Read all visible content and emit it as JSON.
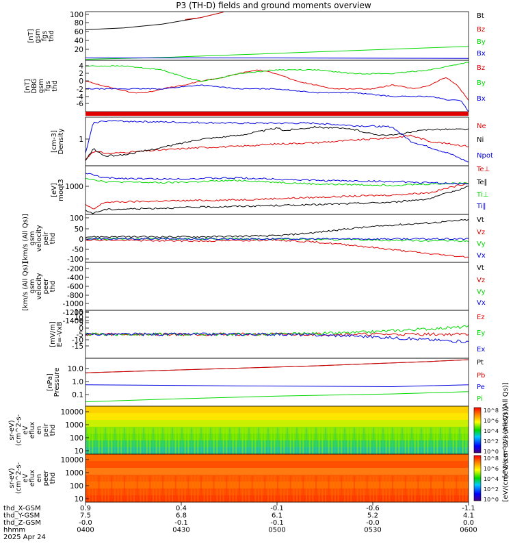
{
  "title": "P3 (TH-D) fields and ground moments overview",
  "colors": {
    "black": "#000000",
    "red": "#e00000",
    "green": "#00d800",
    "blue": "#0000e0",
    "orange": "#ff5a00"
  },
  "chart_data": [
    {
      "type": "line",
      "ylabel": [
        "thd",
        "fgs",
        "gsm",
        "[nT]"
      ],
      "yticks": [
        "100",
        "80",
        "60",
        "40",
        "20"
      ],
      "ylim": [
        0,
        105
      ],
      "series": [
        {
          "name": "Bt",
          "color": "#000000",
          "x": [
            0,
            0.1,
            0.2,
            0.3,
            0.36
          ],
          "y": [
            66,
            70,
            78,
            92,
            104
          ]
        },
        {
          "name": "Bz",
          "color": "#e00000",
          "x": [
            0.26,
            0.3,
            0.36
          ],
          "y": [
            88,
            92,
            104
          ]
        },
        {
          "name": "By",
          "color": "#00d800",
          "x": [
            0,
            0.2,
            0.4,
            0.6,
            0.8,
            1.0
          ],
          "y": [
            2,
            6,
            12,
            18,
            24,
            30
          ]
        },
        {
          "name": "Bx",
          "color": "#0000e0",
          "x": [
            0,
            0.5,
            1.0
          ],
          "y": [
            5,
            5,
            4
          ]
        }
      ]
    },
    {
      "type": "line",
      "ylabel": [
        "thd",
        "fgs",
        "gsm",
        "DBG",
        "[nT]"
      ],
      "yticks": [
        "4",
        "2",
        "0",
        "-2",
        "-4",
        "-6"
      ],
      "ylim": [
        -8,
        5.5
      ],
      "series": [
        {
          "name": "Bz",
          "color": "#e00000",
          "x": [
            0,
            0.04,
            0.08,
            0.12,
            0.16,
            0.2,
            0.26,
            0.3,
            0.36,
            0.4,
            0.45,
            0.5,
            0.55,
            0.6,
            0.65,
            0.7,
            0.75,
            0.8,
            0.86,
            0.9,
            0.94,
            0.97,
            1.0
          ],
          "y": [
            0,
            -1,
            -2,
            -3,
            -3,
            -2,
            -1,
            0,
            1,
            2,
            3,
            2,
            0,
            -1,
            -2,
            -2,
            -2,
            -1,
            -2,
            -1,
            1,
            -1,
            -5
          ]
        },
        {
          "name": "By",
          "color": "#00d800",
          "x": [
            0,
            0.1,
            0.2,
            0.26,
            0.3,
            0.36,
            0.4,
            0.5,
            0.6,
            0.7,
            0.8,
            0.9,
            0.95,
            1.0
          ],
          "y": [
            4,
            4,
            3,
            1,
            0,
            1,
            2,
            3,
            3,
            2,
            2,
            3,
            4,
            5
          ]
        },
        {
          "name": "Bx",
          "color": "#0000e0",
          "x": [
            0,
            0.1,
            0.2,
            0.3,
            0.4,
            0.5,
            0.6,
            0.7,
            0.8,
            0.9,
            0.95,
            0.98,
            1.0
          ],
          "y": [
            -2,
            -2,
            -2,
            -1,
            -2,
            -2,
            -3,
            -3,
            -4,
            -4,
            -5,
            -5,
            -8
          ]
        }
      ]
    },
    {
      "type": "line",
      "ylabel": [
        "Density",
        "[cm-3]"
      ],
      "yticks": [
        "1"
      ],
      "ylim": [
        0,
        4
      ],
      "series": [
        {
          "name": "Ne",
          "color": "#e00000",
          "x": [
            0,
            0.02,
            0.06,
            0.1,
            0.2,
            0.3,
            0.4,
            0.5,
            0.6,
            0.7,
            0.8,
            0.85,
            0.9,
            1.0
          ],
          "y": [
            0.5,
            1.2,
            1.0,
            1.1,
            1.3,
            1.5,
            1.6,
            1.8,
            1.9,
            2.1,
            2.3,
            2.5,
            2.0,
            1.6
          ]
        },
        {
          "name": "Ni",
          "color": "#000000",
          "x": [
            0,
            0.02,
            0.05,
            0.1,
            0.2,
            0.3,
            0.4,
            0.5,
            0.52,
            0.6,
            0.7,
            0.75,
            0.8,
            0.9,
            1.0
          ],
          "y": [
            0.4,
            1.4,
            0.8,
            0.9,
            1.5,
            2.2,
            2.5,
            3.1,
            2.9,
            3.2,
            3.0,
            2.6,
            2.5,
            3.0,
            3.0
          ]
        },
        {
          "name": "Npot",
          "color": "#0000e0",
          "x": [
            0,
            0.02,
            0.05,
            0.2,
            0.4,
            0.6,
            0.7,
            0.8,
            0.85,
            0.9,
            0.95,
            1.0
          ],
          "y": [
            1.0,
            3.5,
            3.7,
            3.6,
            3.5,
            3.5,
            3.3,
            3.2,
            2.0,
            1.5,
            1.0,
            0.3
          ]
        }
      ]
    },
    {
      "type": "line",
      "ylabel": [
        "moqt3",
        "[eV]"
      ],
      "yticks": [
        "1000"
      ],
      "ylim": [
        0,
        4
      ],
      "series": [
        {
          "name": "Te⊥",
          "color": "#e00000",
          "x": [
            0,
            0.02,
            0.05,
            0.2,
            0.4,
            0.6,
            0.8,
            0.9,
            1.0
          ],
          "y": [
            0.8,
            0.4,
            1.0,
            1.1,
            1.2,
            1.4,
            1.6,
            1.8,
            2.6
          ]
        },
        {
          "name": "Te∥",
          "color": "#000000",
          "x": [
            0,
            0.02,
            0.05,
            0.3,
            0.6,
            0.8,
            0.9,
            1.0
          ],
          "y": [
            0.3,
            0.1,
            0.4,
            0.6,
            0.8,
            1.0,
            1.3,
            2.3
          ]
        },
        {
          "name": "Ti⊥",
          "color": "#00d800",
          "x": [
            0,
            0.05,
            0.2,
            0.4,
            0.6,
            0.8,
            1.0
          ],
          "y": [
            3.0,
            2.7,
            2.6,
            2.8,
            2.5,
            2.4,
            2.6
          ]
        },
        {
          "name": "Ti∥",
          "color": "#0000e0",
          "x": [
            0,
            0.05,
            0.2,
            0.4,
            0.6,
            0.8,
            1.0
          ],
          "y": [
            3.4,
            3.0,
            2.9,
            3.0,
            2.8,
            2.7,
            2.5
          ]
        }
      ]
    },
    {
      "type": "line",
      "ylabel": [
        "thd",
        "peir",
        "velocity",
        "gsm",
        "[km/s (All Qs)]"
      ],
      "yticks": [
        "100",
        "50",
        "0",
        "-50",
        "-100"
      ],
      "ylim": [
        -110,
        115
      ],
      "series": [
        {
          "name": "Vt",
          "color": "#000000",
          "x": [
            0,
            0.3,
            0.5,
            0.6,
            0.7,
            0.8,
            0.9,
            1.0
          ],
          "y": [
            10,
            10,
            15,
            30,
            50,
            65,
            75,
            90
          ]
        },
        {
          "name": "Vz",
          "color": "#e00000",
          "x": [
            0,
            0.3,
            0.5,
            0.6,
            0.7,
            0.8,
            0.9,
            1.0
          ],
          "y": [
            -5,
            -10,
            -5,
            -15,
            -30,
            -50,
            -70,
            -85
          ]
        },
        {
          "name": "Vy",
          "color": "#00d800",
          "x": [
            0,
            0.5,
            1.0
          ],
          "y": [
            0,
            0,
            -10
          ]
        },
        {
          "name": "Vx",
          "color": "#0000e0",
          "x": [
            0,
            0.5,
            1.0
          ],
          "y": [
            0,
            0,
            0
          ]
        }
      ]
    },
    {
      "type": "line",
      "ylabel": [
        "thd",
        "peer",
        "velocity",
        "gsm",
        "[km/s (All Qs)]"
      ],
      "yticks": [
        "-200",
        "-400",
        "-600",
        "-800",
        "-1000",
        "-1200",
        "-1400"
      ],
      "ylim": [
        -1500,
        0
      ],
      "series": [
        {
          "name": "Vt",
          "color": "#000000"
        },
        {
          "name": "Vz",
          "color": "#e00000"
        },
        {
          "name": "Vy",
          "color": "#00d800"
        },
        {
          "name": "Vx",
          "color": "#0000e0"
        }
      ]
    },
    {
      "type": "line",
      "ylabel": [
        "E=-VxB",
        "[mV/m]"
      ],
      "yticks": [
        "15",
        "10",
        "5",
        "0",
        "-5",
        "-10",
        "-15"
      ],
      "ylim": [
        -16,
        16
      ],
      "series": [
        {
          "name": "Ez",
          "color": "#e00000",
          "x": [
            0,
            0.5,
            1.0
          ],
          "y": [
            0,
            0,
            0
          ]
        },
        {
          "name": "Ey",
          "color": "#00d800",
          "x": [
            0,
            0.5,
            0.7,
            0.85,
            1.0
          ],
          "y": [
            0,
            0,
            1,
            3,
            5
          ]
        },
        {
          "name": "Ex",
          "color": "#0000e0",
          "x": [
            0,
            0.5,
            0.7,
            0.85,
            1.0
          ],
          "y": [
            0,
            0,
            -1,
            -3,
            -5
          ]
        }
      ]
    },
    {
      "type": "line",
      "ylabel": [
        "Pressure",
        "[nPa]"
      ],
      "yticks": [
        "10.0",
        "1.0",
        "0.1"
      ],
      "ylim": [
        0.01,
        20
      ],
      "yscale": "log",
      "series": [
        {
          "name": "Pt",
          "color": "#000000",
          "x": [
            0,
            0.3,
            0.6,
            0.9,
            1.0
          ],
          "y": [
            2,
            3.5,
            6,
            12,
            16
          ]
        },
        {
          "name": "Pb",
          "color": "#e00000",
          "x": [
            0,
            0.3,
            0.6,
            0.9,
            1.0
          ],
          "y": [
            2,
            3.5,
            6,
            12,
            16
          ]
        },
        {
          "name": "Pe",
          "color": "#0000e0",
          "x": [
            0,
            0.4,
            0.8,
            1.0
          ],
          "y": [
            0.3,
            0.25,
            0.22,
            0.3
          ]
        },
        {
          "name": "Pi",
          "color": "#00d800",
          "x": [
            0,
            0.2,
            0.5,
            0.8,
            1.0
          ],
          "y": [
            0.02,
            0.03,
            0.05,
            0.07,
            0.1
          ]
        }
      ]
    },
    {
      "type": "heatmap",
      "ylabel": [
        "thd",
        "peir",
        "en",
        "eflux",
        "eV",
        "(cm^2-s-",
        "sr-eV)"
      ],
      "yticks": [
        "10000",
        "1000",
        "100",
        "10"
      ],
      "ylim": [
        5,
        30000
      ],
      "yscale": "log",
      "colorbar": {
        "ticks": [
          "10^8",
          "10^6",
          "10^4",
          "10^2",
          "10^0"
        ],
        "label": "[eV/(cm^2-s-sr-eV) (All Qs)]"
      }
    },
    {
      "type": "heatmap",
      "ylabel": [
        "thd",
        "peer",
        "en",
        "eflux",
        "eV",
        "(cm^2-s-",
        "sr-eV)"
      ],
      "yticks": [
        "10000",
        "1000",
        "100",
        "10"
      ],
      "ylim": [
        5,
        30000
      ],
      "yscale": "log",
      "colorbar": {
        "ticks": [
          "10^8",
          "10^6",
          "10^4",
          "10^2",
          "10^0"
        ],
        "label": "[eV/(cm^2-s-sr-eV) (All Qs)]"
      }
    }
  ],
  "footer": {
    "row_labels": [
      "thd_X-GSM",
      "thd_Y-GSM",
      "thd_Z-GSM",
      "hhmm",
      "2025 Apr 24"
    ],
    "columns": [
      [
        "0.9",
        "7.5",
        "-0.0",
        "0400"
      ],
      [
        "0.4",
        "6.8",
        "-0.1",
        "0430"
      ],
      [
        "-0.1",
        "6.1",
        "-0.1",
        "0500"
      ],
      [
        "-0.6",
        "5.2",
        "-0.0",
        "0530"
      ],
      [
        "-1.1",
        "4.1",
        "0.0",
        "0600"
      ]
    ]
  }
}
